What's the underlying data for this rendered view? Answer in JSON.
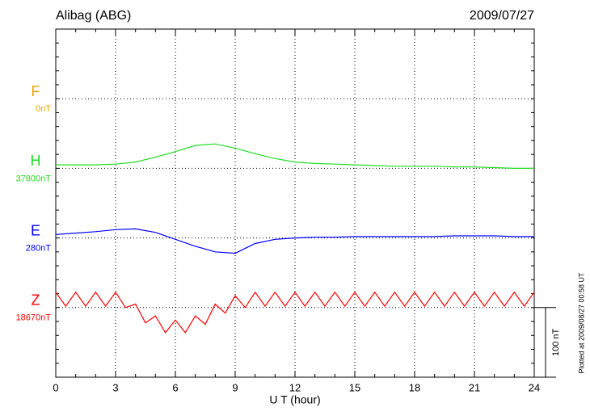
{
  "chart_data": {
    "type": "line",
    "title": "Alibag (ABG)",
    "date": "2009/07/27",
    "x_label": "U T (hour)",
    "note": "Plotted at 2009/08/27 00:58 UT",
    "scale_bar": {
      "value": 100,
      "label": "100 nT"
    },
    "xlim": [
      0,
      24
    ],
    "xticks": [
      0,
      3,
      6,
      9,
      12,
      15,
      18,
      21,
      24
    ],
    "grid": true,
    "series": [
      {
        "name": "F",
        "color": "#f0a000",
        "baseline": {
          "value": 0,
          "label": "0nT"
        },
        "x": [],
        "values": []
      },
      {
        "name": "H",
        "color": "#22dd22",
        "baseline": {
          "value": 37800,
          "label": "37800nT"
        },
        "x": [
          0,
          1,
          2,
          3,
          4,
          5,
          6,
          7,
          8,
          9,
          10,
          11,
          12,
          13,
          14,
          15,
          16,
          17,
          18,
          19,
          20,
          21,
          22,
          23,
          24
        ],
        "values": [
          37805,
          37805,
          37805,
          37806,
          37809,
          37816,
          37824,
          37833,
          37835,
          37829,
          37821,
          37814,
          37809,
          37807,
          37806,
          37805,
          37804,
          37803,
          37803,
          37803,
          37802,
          37802,
          37801,
          37800,
          37800
        ]
      },
      {
        "name": "E",
        "color": "#0000ff",
        "baseline": {
          "value": 280,
          "label": "280nT"
        },
        "x": [
          0,
          1,
          2,
          3,
          4,
          5,
          6,
          7,
          8,
          9,
          10,
          11,
          12,
          13,
          14,
          15,
          16,
          17,
          18,
          19,
          20,
          21,
          22,
          23,
          24
        ],
        "values": [
          285,
          287,
          289,
          292,
          293,
          288,
          278,
          268,
          260,
          258,
          272,
          278,
          280,
          281,
          281,
          282,
          282,
          282,
          282,
          282,
          283,
          283,
          283,
          282,
          282
        ]
      },
      {
        "name": "Z",
        "color": "#ff0000",
        "baseline": {
          "value": 18670,
          "label": "18670nT"
        },
        "x": [
          0,
          0.5,
          1,
          1.5,
          2,
          2.5,
          3,
          3.5,
          4,
          4.5,
          5,
          5.5,
          6,
          6.5,
          7,
          7.5,
          8,
          8.5,
          9,
          9.5,
          10,
          10.5,
          11,
          11.5,
          12,
          12.5,
          13,
          13.5,
          14,
          14.5,
          15,
          15.5,
          16,
          16.5,
          17,
          17.5,
          18,
          18.5,
          19,
          19.5,
          20,
          20.5,
          21,
          21.5,
          22,
          22.5,
          23,
          23.5,
          24
        ],
        "values": [
          18692,
          18672,
          18692,
          18672,
          18692,
          18672,
          18692,
          18670,
          18675,
          18648,
          18658,
          18634,
          18652,
          18634,
          18658,
          18646,
          18675,
          18662,
          18687,
          18670,
          18692,
          18672,
          18692,
          18672,
          18692,
          18672,
          18692,
          18672,
          18692,
          18672,
          18692,
          18672,
          18692,
          18672,
          18692,
          18672,
          18692,
          18672,
          18692,
          18672,
          18692,
          18672,
          18692,
          18672,
          18692,
          18672,
          18692,
          18672,
          18692
        ]
      }
    ]
  }
}
